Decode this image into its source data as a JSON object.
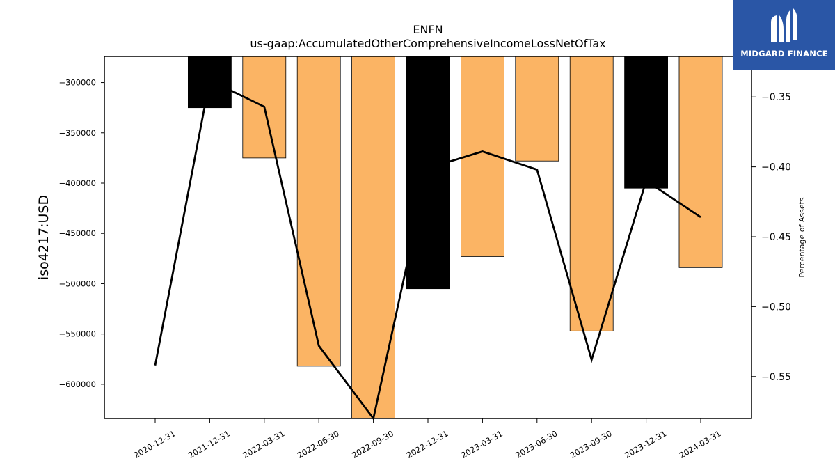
{
  "logo": {
    "text": "MIDGARD FINANCE"
  },
  "chart_data": {
    "type": "bar",
    "title": "ENFN",
    "subtitle": "us-gaap:AccumulatedOtherComprehensiveIncomeLossNetOfTax",
    "ylabel": "iso4217:USD",
    "y2label": "Percentage of Assets",
    "categories": [
      "2020-12-31",
      "2021-12-31",
      "2022-03-31",
      "2022-06-30",
      "2022-09-30",
      "2022-12-31",
      "2023-03-31",
      "2023-06-30",
      "2023-09-30",
      "2023-12-31",
      "2024-03-31"
    ],
    "bar_values": [
      null,
      -325000,
      -375000,
      -582000,
      -634000,
      -505000,
      -473000,
      -378000,
      -547000,
      -405000,
      -484000
    ],
    "bar_colors": [
      "#fbb464",
      "#000000",
      "#fbb464",
      "#fbb464",
      "#fbb464",
      "#000000",
      "#fbb464",
      "#fbb464",
      "#fbb464",
      "#000000",
      "#fbb464"
    ],
    "line_values": [
      -0.542,
      -0.338,
      -0.357,
      -0.528,
      -0.58,
      -0.401,
      -0.389,
      -0.402,
      -0.538,
      -0.41,
      -0.436
    ],
    "ylim": [
      -634000,
      -274000
    ],
    "y2lim": [
      -0.58,
      -0.321
    ],
    "yticks": [
      -300000,
      -350000,
      -400000,
      -450000,
      -500000,
      -550000,
      -600000
    ],
    "y2ticks": [
      -0.35,
      -0.4,
      -0.45,
      -0.5,
      -0.55
    ],
    "ytick_labels": [
      "−300000",
      "−350000",
      "−400000",
      "−450000",
      "−500000",
      "−550000",
      "−600000"
    ],
    "y2tick_labels": [
      "−0.35",
      "−0.40",
      "−0.45",
      "−0.50",
      "−0.55"
    ],
    "line_color": "#000000"
  }
}
